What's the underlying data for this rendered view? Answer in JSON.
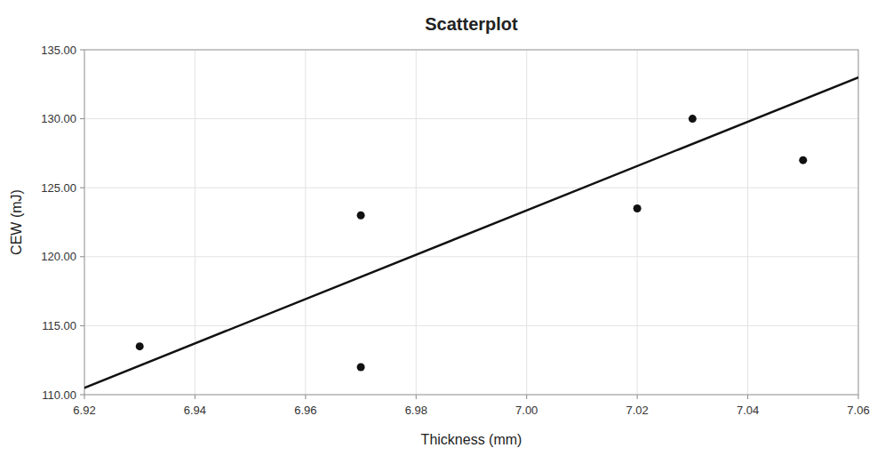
{
  "chart_data": {
    "type": "scatter",
    "title": "Scatterplot",
    "xlabel": "Thickness (mm)",
    "ylabel": "CEW (mJ)",
    "series": [
      {
        "type": "scatter",
        "color": "#111111",
        "x": [
          6.93,
          6.97,
          6.97,
          7.02,
          7.03,
          7.05
        ],
        "values": [
          113.5,
          123.0,
          112.0,
          123.5,
          130.0,
          127.0
        ]
      },
      {
        "type": "line",
        "color": "#111111",
        "x": [
          6.92,
          7.06
        ],
        "values": [
          110.5,
          133.0
        ]
      }
    ],
    "xlim": [
      6.92,
      7.06
    ],
    "ylim": [
      110.0,
      135.0
    ],
    "xticks": [
      6.92,
      6.94,
      6.96,
      6.98,
      {
        "value": 7.0,
        "label": "7.00"
      },
      7.02,
      7.04,
      7.06
    ],
    "yticks": [
      {
        "value": 110,
        "label": "110.00"
      },
      {
        "value": 115,
        "label": "115.00"
      },
      {
        "value": 120,
        "label": "120.00"
      },
      {
        "value": 125,
        "label": "125.00"
      },
      {
        "value": 130,
        "label": "130.00"
      },
      {
        "value": 135,
        "label": "135.00"
      }
    ],
    "grid": true
  }
}
